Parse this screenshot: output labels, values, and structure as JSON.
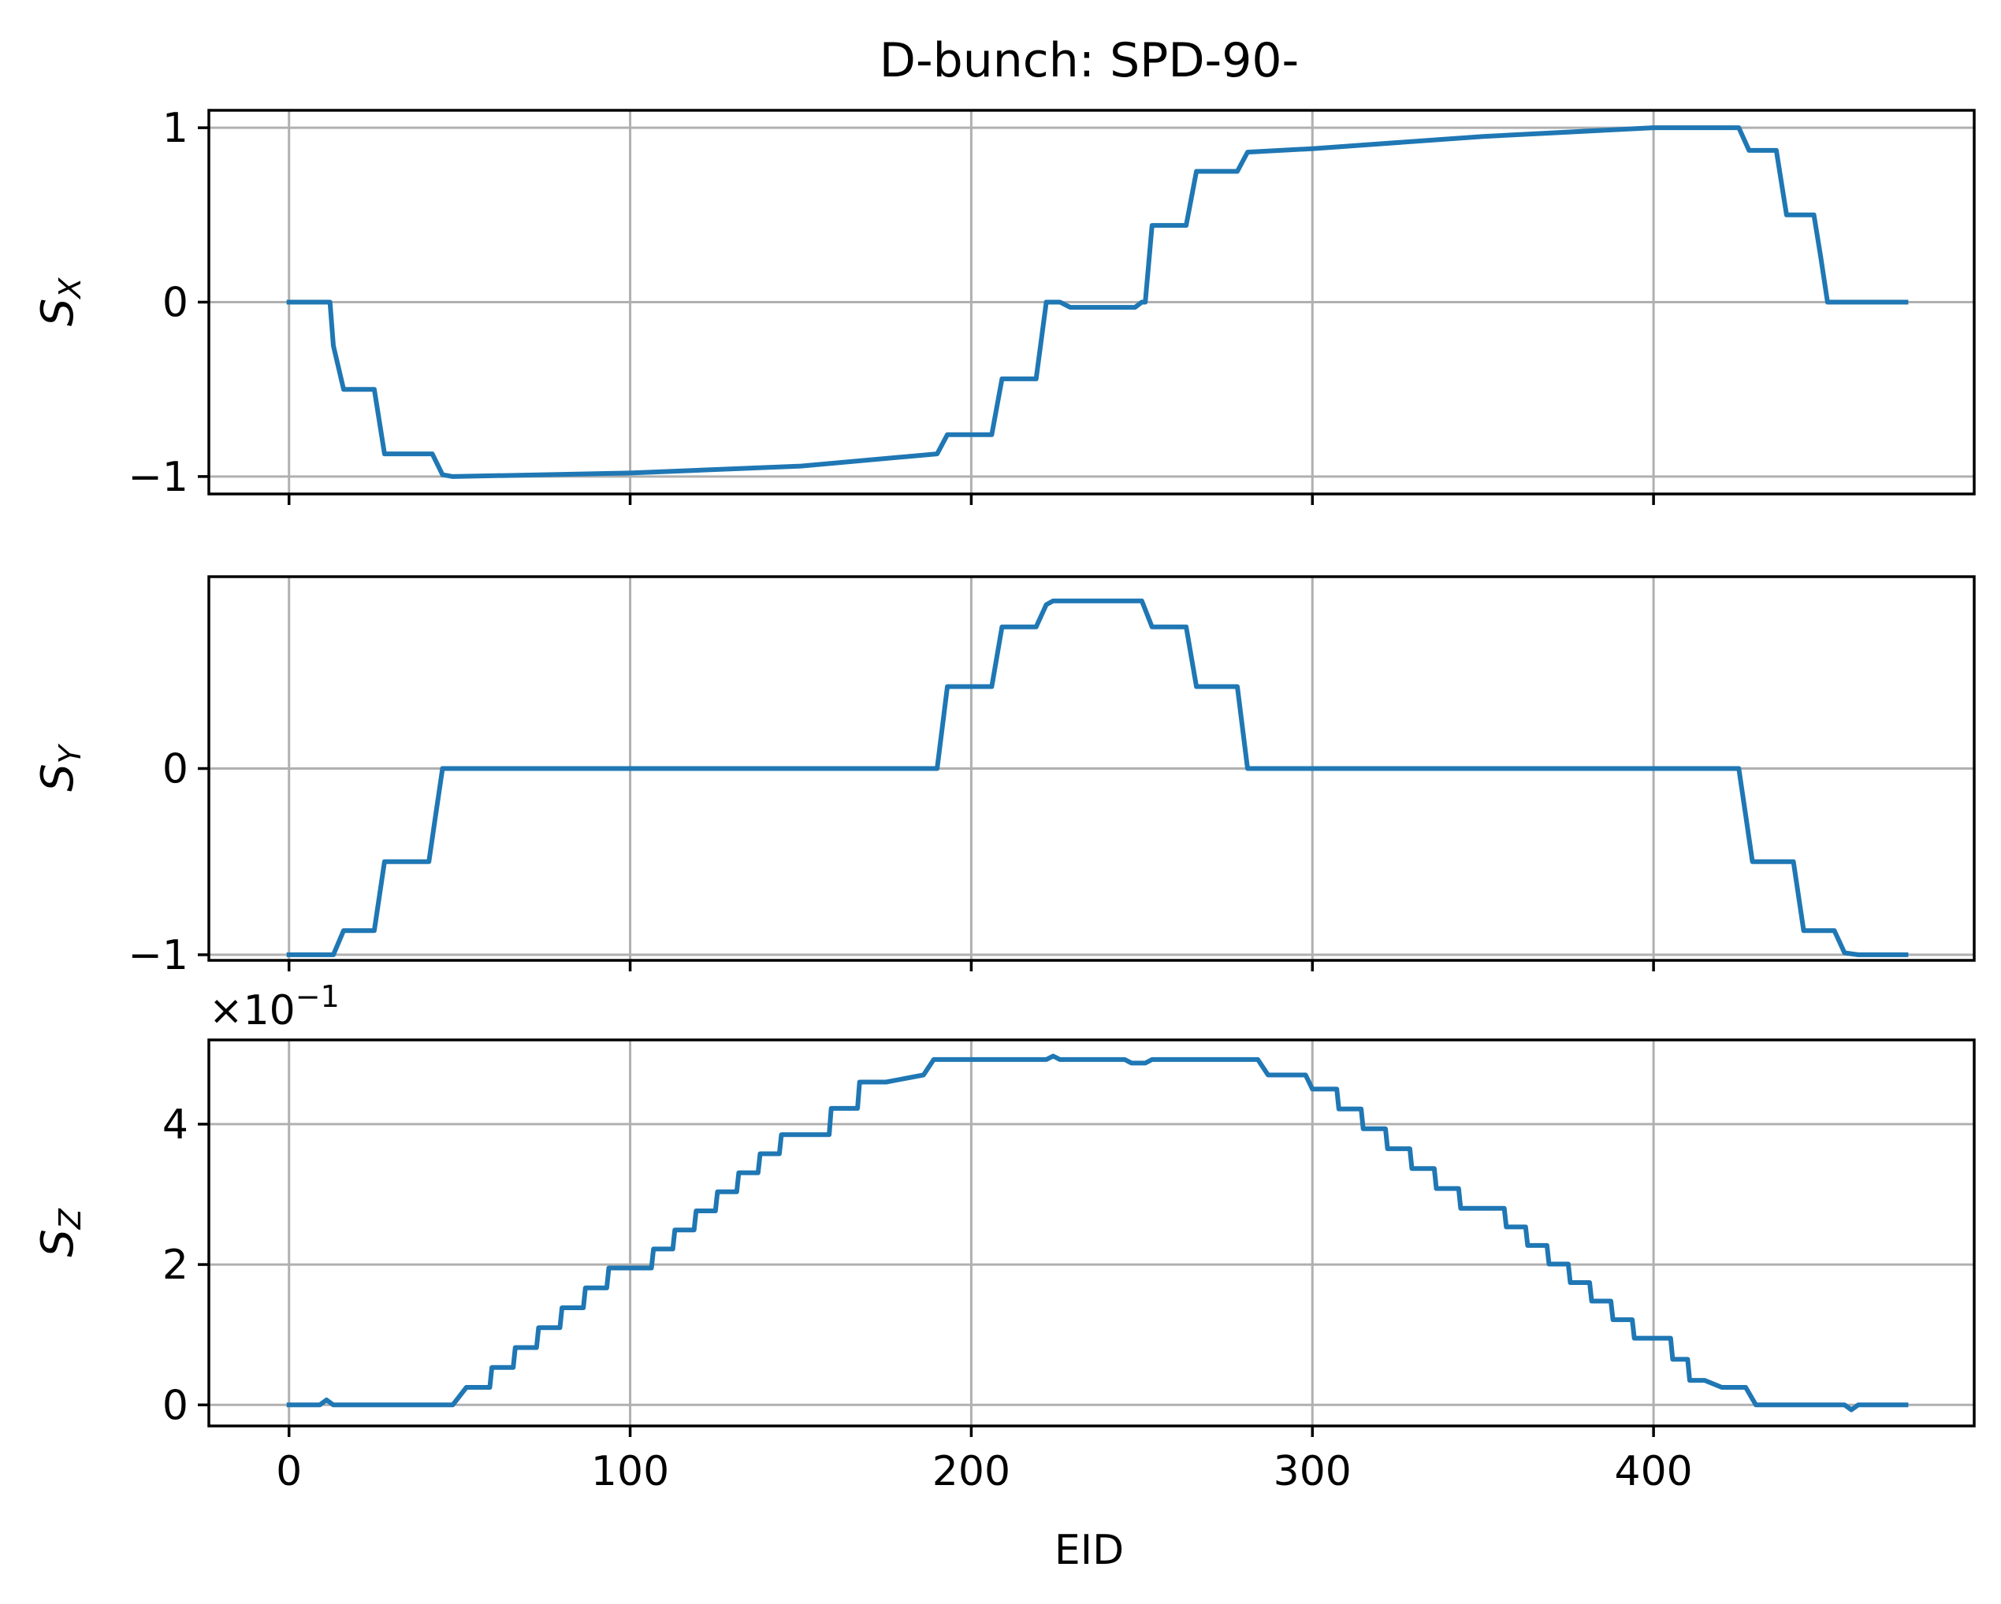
{
  "colors": {
    "series": "#1f77b4",
    "grid": "#b0b0b0"
  },
  "chart_data": {
    "type": "line",
    "title": "D-bunch: SPD-90-",
    "xlabel": "EID",
    "xlim": [
      -23.5,
      494
    ],
    "xticks": [
      0,
      100,
      200,
      300,
      400
    ],
    "xtick_labels": [
      "0",
      "100",
      "200",
      "300",
      "400"
    ],
    "grid": true,
    "panels": [
      {
        "id": "sx",
        "ylabel": "S",
        "ylabel_sub": "X",
        "ylim": [
          -1.1,
          1.1
        ],
        "yticks": [
          -1,
          0,
          1
        ],
        "ytick_labels": [
          "−1",
          "0",
          "1"
        ],
        "show_xtick_labels": false,
        "points": [
          [
            0,
            0
          ],
          [
            12,
            0
          ],
          [
            13,
            -0.25
          ],
          [
            16,
            -0.5
          ],
          [
            25,
            -0.5
          ],
          [
            28,
            -0.87
          ],
          [
            42,
            -0.87
          ],
          [
            45,
            -0.99
          ],
          [
            48,
            -1.0
          ],
          [
            100,
            -0.98
          ],
          [
            150,
            -0.94
          ],
          [
            190,
            -0.87
          ],
          [
            193,
            -0.76
          ],
          [
            206,
            -0.76
          ],
          [
            209,
            -0.44
          ],
          [
            219,
            -0.44
          ],
          [
            222,
            0
          ],
          [
            226,
            0
          ],
          [
            229,
            -0.03
          ],
          [
            248,
            -0.03
          ],
          [
            250,
            0
          ],
          [
            251,
            0
          ],
          [
            253,
            0.44
          ],
          [
            263,
            0.44
          ],
          [
            266,
            0.75
          ],
          [
            278,
            0.75
          ],
          [
            281,
            0.86
          ],
          [
            300,
            0.88
          ],
          [
            350,
            0.95
          ],
          [
            400,
            1.0
          ],
          [
            425,
            1.0
          ],
          [
            428,
            0.87
          ],
          [
            436,
            0.87
          ],
          [
            439,
            0.5
          ],
          [
            447,
            0.5
          ],
          [
            449,
            0.26
          ],
          [
            451,
            0
          ],
          [
            474,
            0
          ]
        ]
      },
      {
        "id": "sy",
        "ylabel": "S",
        "ylabel_sub": "Y",
        "ylim": [
          -1.03,
          1.03
        ],
        "yticks": [
          -1,
          0
        ],
        "ytick_labels": [
          "−1",
          "0"
        ],
        "show_xtick_labels": false,
        "points": [
          [
            0,
            -1
          ],
          [
            13,
            -1
          ],
          [
            16,
            -0.87
          ],
          [
            25,
            -0.87
          ],
          [
            28,
            -0.5
          ],
          [
            41,
            -0.5
          ],
          [
            43,
            -0.25
          ],
          [
            45,
            0
          ],
          [
            190,
            0
          ],
          [
            193,
            0.44
          ],
          [
            206,
            0.44
          ],
          [
            209,
            0.76
          ],
          [
            219,
            0.76
          ],
          [
            222,
            0.88
          ],
          [
            224,
            0.9
          ],
          [
            250,
            0.9
          ],
          [
            253,
            0.76
          ],
          [
            263,
            0.76
          ],
          [
            266,
            0.44
          ],
          [
            278,
            0.44
          ],
          [
            281,
            0
          ],
          [
            425,
            0
          ],
          [
            427,
            -0.25
          ],
          [
            429,
            -0.5
          ],
          [
            441,
            -0.5
          ],
          [
            444,
            -0.87
          ],
          [
            453,
            -0.87
          ],
          [
            456,
            -0.99
          ],
          [
            460,
            -1
          ],
          [
            474,
            -1
          ]
        ]
      },
      {
        "id": "sz",
        "ylabel": "S",
        "ylabel_sub": "Z",
        "ylim": [
          -0.3,
          5.2
        ],
        "yticks": [
          0,
          2,
          4
        ],
        "ytick_labels": [
          "0",
          "2",
          "4"
        ],
        "multiplier": "×10",
        "multiplier_exp": "−1",
        "show_xtick_labels": true,
        "steps": 0.25,
        "points": [
          [
            0,
            0
          ],
          [
            9,
            0
          ],
          [
            11,
            0.07
          ],
          [
            13,
            0
          ],
          [
            48,
            0
          ],
          [
            52,
            0.25
          ],
          [
            100,
            1.95
          ],
          [
            150,
            3.85
          ],
          [
            175,
            4.6
          ],
          [
            186,
            4.7
          ],
          [
            189,
            4.92
          ],
          [
            222,
            4.92
          ],
          [
            224,
            4.97
          ],
          [
            226,
            4.92
          ],
          [
            245,
            4.92
          ],
          [
            247,
            4.87
          ],
          [
            251,
            4.87
          ],
          [
            253,
            4.92
          ],
          [
            284,
            4.92
          ],
          [
            287,
            4.7
          ],
          [
            298,
            4.7
          ],
          [
            300,
            4.5
          ],
          [
            350,
            2.8
          ],
          [
            400,
            0.95
          ],
          [
            415,
            0.35
          ],
          [
            420,
            0.25
          ],
          [
            427,
            0.25
          ],
          [
            430,
            0
          ],
          [
            456,
            0
          ],
          [
            458,
            -0.07
          ],
          [
            460,
            0
          ],
          [
            474,
            0
          ]
        ]
      }
    ]
  }
}
